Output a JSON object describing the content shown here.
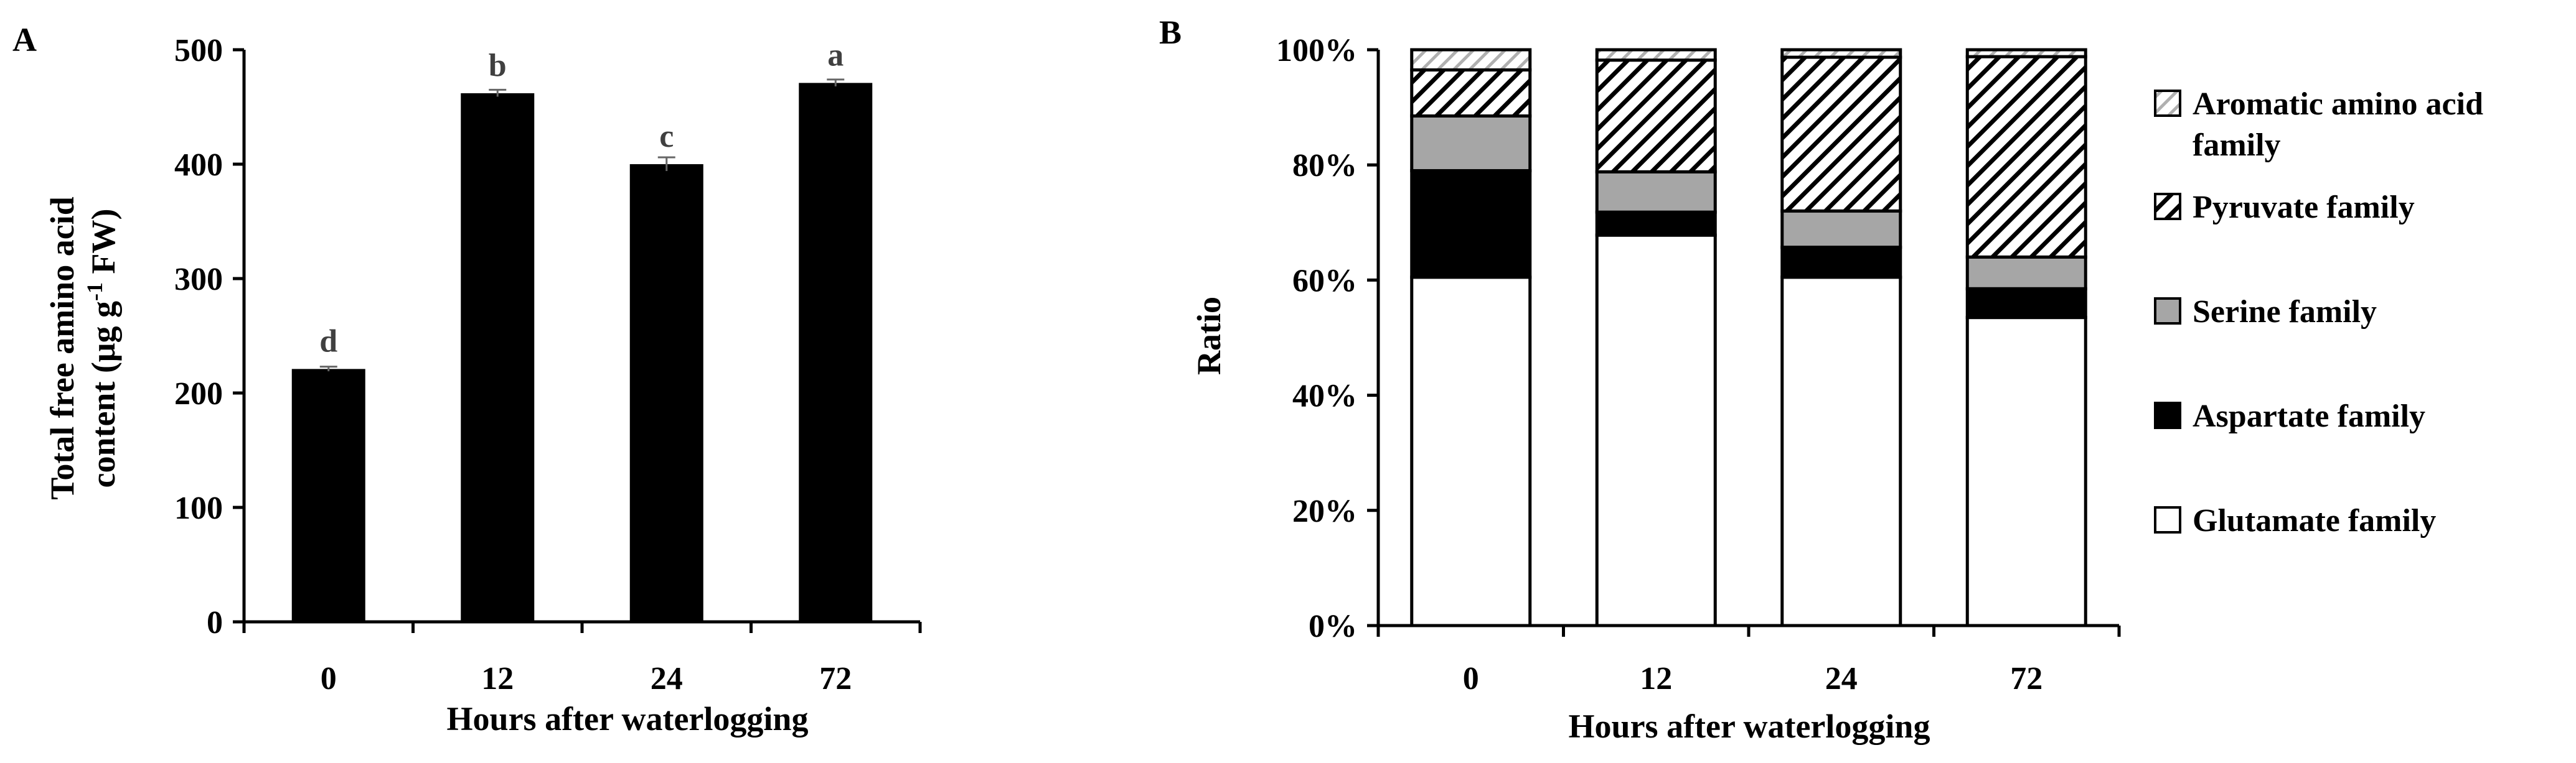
{
  "chart_data": [
    {
      "panel": "A",
      "type": "bar",
      "categories": [
        "0",
        "12",
        "24",
        "72"
      ],
      "values": [
        221,
        462,
        400,
        471
      ],
      "errors": [
        2,
        3,
        6,
        3
      ],
      "significance": [
        "d",
        "b",
        "c",
        "a"
      ],
      "xlabel": "Hours after waterlogging",
      "ylabel_line1": "Total free amino acid",
      "ylabel_line2": "content (μg g",
      "ylabel_sup": "-1",
      "ylabel_end": " FW)",
      "ylim": [
        0,
        500
      ],
      "yticks": [
        "0",
        "100",
        "200",
        "300",
        "400",
        "500"
      ],
      "bar_color": "#000000",
      "grid": false,
      "legend": "none"
    },
    {
      "panel": "B",
      "type": "bar",
      "stacked": true,
      "categories": [
        "0",
        "12",
        "24",
        "72"
      ],
      "series": [
        {
          "name": "Glutamate family",
          "values": [
            60.5,
            67.8,
            60.5,
            53.5
          ],
          "fill": "#ffffff"
        },
        {
          "name": "Aspartate family",
          "values": [
            18.5,
            4.0,
            5.2,
            5.0
          ],
          "fill": "#000000"
        },
        {
          "name": "Serine family",
          "values": [
            9.5,
            7.0,
            6.3,
            5.5
          ],
          "fill": "#a6a6a6"
        },
        {
          "name": "Pyruvate family",
          "values": [
            8.0,
            19.4,
            26.7,
            34.8
          ],
          "fill": "hatch-black"
        },
        {
          "name": "Aromatic amino acid family",
          "values": [
            3.5,
            1.8,
            1.3,
            1.2
          ],
          "fill": "hatch-gray"
        }
      ],
      "legend_items": [
        {
          "line1": "Aromatic amino acid",
          "line2": "family",
          "fill": "hatch-gray"
        },
        {
          "line1": "Pyruvate family",
          "fill": "hatch-black"
        },
        {
          "line1": "Serine family",
          "fill": "#a6a6a6"
        },
        {
          "line1": "Aspartate family",
          "fill": "#000000"
        },
        {
          "line1": "Glutamate family",
          "fill": "#ffffff"
        }
      ],
      "xlabel": "Hours after waterlogging",
      "ylabel": "Ratio",
      "ylim": [
        0,
        100
      ],
      "yticks": [
        "0%",
        "20%",
        "40%",
        "60%",
        "80%",
        "100%"
      ],
      "grid": false,
      "legend": "right"
    }
  ]
}
